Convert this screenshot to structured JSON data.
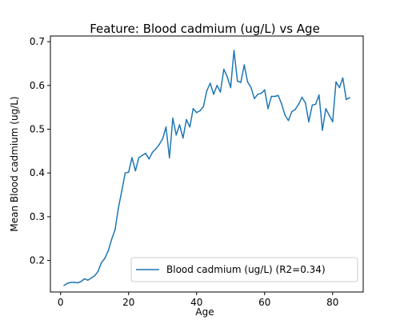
{
  "chart_data": {
    "type": "line",
    "title": "Feature: Blood cadmium (ug/L) vs Age",
    "xlabel": "Age",
    "ylabel": "Mean Blood cadmium (ug/L)",
    "xlim": [
      -3,
      89
    ],
    "ylim": [
      0.128,
      0.713
    ],
    "xticks": [
      0,
      20,
      40,
      60,
      80
    ],
    "yticks": [
      0.2,
      0.3,
      0.4,
      0.5,
      0.6,
      0.7
    ],
    "xtick_labels": [
      "0",
      "20",
      "40",
      "60",
      "80"
    ],
    "ytick_labels": [
      "0.2",
      "0.3",
      "0.4",
      "0.5",
      "0.6",
      "0.7"
    ],
    "grid": false,
    "legend": {
      "position": "lower-right",
      "entries": [
        "Blood cadmium (ug/L) (R2=0.34)"
      ]
    },
    "series": [
      {
        "name": "Blood cadmium (ug/L) (R2=0.34)",
        "color": "#1f77b4",
        "x": [
          1,
          2,
          3,
          4,
          5,
          6,
          7,
          8,
          9,
          10,
          11,
          12,
          13,
          14,
          15,
          16,
          17,
          18,
          19,
          20,
          21,
          22,
          23,
          24,
          25,
          26,
          27,
          28,
          29,
          30,
          31,
          32,
          33,
          34,
          35,
          36,
          37,
          38,
          39,
          40,
          41,
          42,
          43,
          44,
          45,
          46,
          47,
          48,
          49,
          50,
          51,
          52,
          53,
          54,
          55,
          56,
          57,
          58,
          59,
          60,
          61,
          62,
          63,
          64,
          65,
          66,
          67,
          68,
          69,
          70,
          71,
          72,
          73,
          74,
          75,
          76,
          77,
          78,
          79,
          80,
          81,
          82,
          83,
          84,
          85
        ],
        "y": [
          0.143,
          0.148,
          0.15,
          0.15,
          0.149,
          0.152,
          0.158,
          0.155,
          0.16,
          0.165,
          0.175,
          0.195,
          0.205,
          0.222,
          0.248,
          0.27,
          0.32,
          0.36,
          0.4,
          0.402,
          0.435,
          0.405,
          0.435,
          0.44,
          0.445,
          0.432,
          0.447,
          0.455,
          0.465,
          0.478,
          0.505,
          0.435,
          0.525,
          0.487,
          0.51,
          0.48,
          0.522,
          0.505,
          0.547,
          0.538,
          0.542,
          0.552,
          0.588,
          0.605,
          0.58,
          0.6,
          0.585,
          0.637,
          0.62,
          0.595,
          0.68,
          0.61,
          0.607,
          0.647,
          0.608,
          0.595,
          0.57,
          0.58,
          0.582,
          0.59,
          0.547,
          0.575,
          0.575,
          0.577,
          0.558,
          0.532,
          0.52,
          0.54,
          0.545,
          0.557,
          0.573,
          0.56,
          0.517,
          0.555,
          0.557,
          0.578,
          0.498,
          0.547,
          0.532,
          0.517,
          0.608,
          0.595,
          0.617,
          0.568,
          0.572
        ]
      }
    ]
  }
}
